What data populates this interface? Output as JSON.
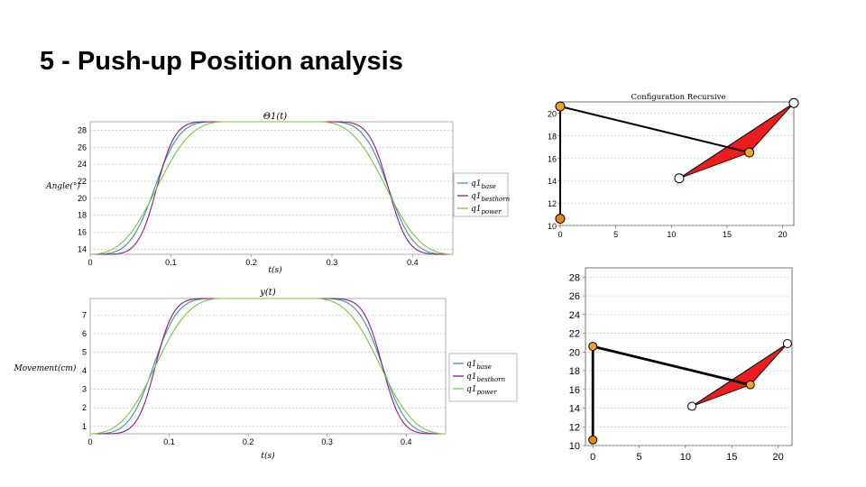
{
  "slide": {
    "title": "5 - Push-up Position analysis"
  },
  "chart_data": [
    {
      "type": "line",
      "title": "Θ1(t)",
      "xlabel": "t(s)",
      "ylabel": "Angle(°)",
      "xlim": [
        0,
        0.45
      ],
      "ylim": [
        13.4,
        29
      ],
      "xticks": [
        "0",
        "0.1",
        "0.2",
        "0.3",
        "0.4"
      ],
      "yticks": [
        "14",
        "16",
        "18",
        "20",
        "22",
        "24",
        "26",
        "28"
      ],
      "grid": true,
      "legend": "right",
      "series": [
        {
          "name": "q1base",
          "base": "q1",
          "sub": "base",
          "color": "#3b8fb3",
          "key": "base"
        },
        {
          "name": "q1besthorn",
          "base": "q1",
          "sub": "besthorn",
          "color": "#8b1e7a",
          "key": "besthorn"
        },
        {
          "name": "q1power",
          "base": "q1",
          "sub": "power",
          "color": "#7cc242",
          "key": "power"
        }
      ]
    },
    {
      "type": "line",
      "title": "y(t)",
      "xlabel": "t(s)",
      "ylabel": "Movement(cm)",
      "xlim": [
        0,
        0.45
      ],
      "ylim": [
        0.6,
        7.9
      ],
      "xticks": [
        "0",
        "0.1",
        "0.2",
        "0.3",
        "0.4"
      ],
      "yticks": [
        "1",
        "2",
        "3",
        "4",
        "5",
        "6",
        "7"
      ],
      "grid": true,
      "legend": "right",
      "series": [
        {
          "name": "q1base",
          "base": "q1",
          "sub": "base",
          "color": "#3b8fb3",
          "key": "base"
        },
        {
          "name": "q1besthorn",
          "base": "q1",
          "sub": "besthorn",
          "color": "#8b1e7a",
          "key": "besthorn"
        },
        {
          "name": "q1power",
          "base": "q1",
          "sub": "power",
          "color": "#7cc242",
          "key": "power"
        }
      ]
    },
    {
      "type": "scatter",
      "title": "Configuration Recursive",
      "xlim": [
        0,
        21
      ],
      "ylim": [
        10,
        21
      ],
      "xticks": [
        "0",
        "5",
        "10",
        "15",
        "20"
      ],
      "yticks": [
        "10",
        "12",
        "14",
        "16",
        "18",
        "20"
      ],
      "grid": true,
      "points": [
        {
          "x": 0,
          "y": 10.6,
          "fill": "#e8861a"
        },
        {
          "x": 0,
          "y": 20.6,
          "fill": "#f2a22a"
        },
        {
          "x": 17,
          "y": 16.5,
          "fill": "#f2a22a"
        },
        {
          "x": 21,
          "y": 20.9,
          "fill": "#ffffff"
        },
        {
          "x": 10.7,
          "y": 14.2,
          "fill": "#ffffff"
        }
      ],
      "links": [
        [
          0,
          1
        ],
        [
          1,
          2
        ]
      ],
      "triangle": [
        2,
        3,
        4
      ],
      "triangle_color": "#ee1c1c"
    },
    {
      "type": "scatter",
      "title": "",
      "xlim": [
        -0.8,
        21.5
      ],
      "ylim": [
        10,
        29
      ],
      "xticks": [
        "0",
        "5",
        "10",
        "15",
        "20"
      ],
      "yticks": [
        "10",
        "12",
        "14",
        "16",
        "18",
        "20",
        "22",
        "24",
        "26",
        "28"
      ],
      "grid": true,
      "points": [
        {
          "x": 0,
          "y": 10.6,
          "fill": "#e8861a"
        },
        {
          "x": 0,
          "y": 20.6,
          "fill": "#f2a22a"
        },
        {
          "x": 17,
          "y": 16.5,
          "fill": "#f2a22a"
        },
        {
          "x": 21,
          "y": 20.9,
          "fill": "#ffffff"
        },
        {
          "x": 10.7,
          "y": 14.2,
          "fill": "#ffffff"
        }
      ],
      "links": [
        [
          0,
          1
        ],
        [
          1,
          2
        ]
      ],
      "triangle": [
        2,
        3,
        4
      ],
      "triangle_color": "#ee1c1c"
    }
  ]
}
